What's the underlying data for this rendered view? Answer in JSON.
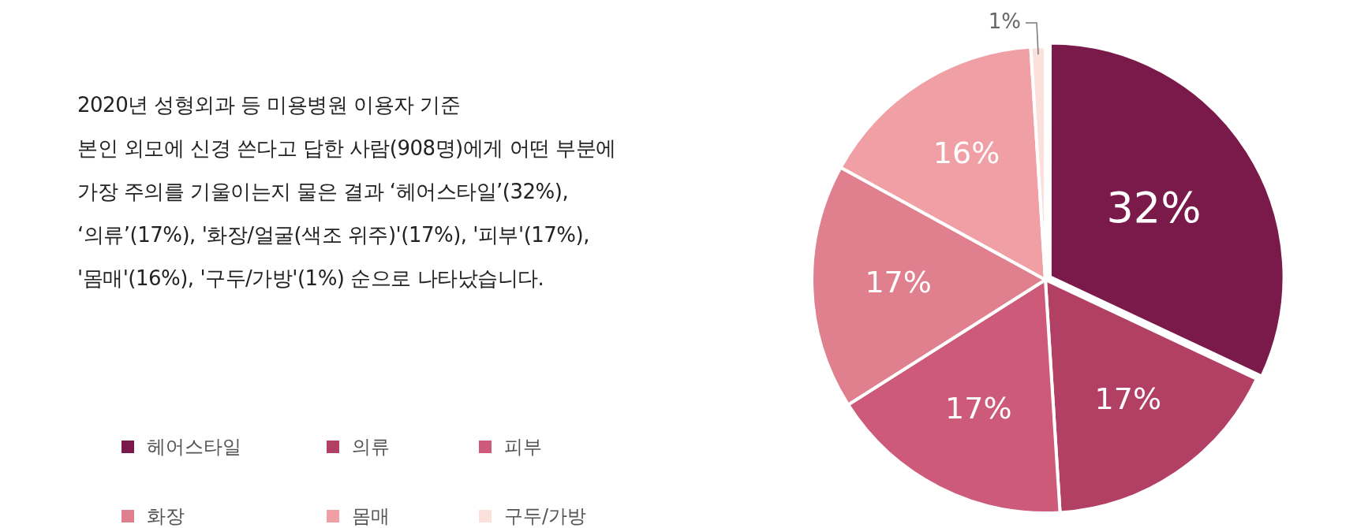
{
  "chart_data": {
    "type": "pie",
    "subtitle": "2020년 성형외과 등 미용병원 이용자 기준\n본인 외모에 신경 쓴다고 답한 사람(908명)에게 어떤 부분에\n가장 주의를 기울이는지 물은 결과 ‘헤어스타일’(32%),\n‘의류’(17%), '화장/얼굴(색조 위주)'(17%), '피부'(17%),\n'몸매'(16%), '구두/가방'(1%) 순으로 나타났습니다.",
    "categories": [
      "헤어스타일",
      "의류",
      "피부",
      "화장",
      "몸매",
      "구두/가방"
    ],
    "values": [
      32,
      17,
      17,
      17,
      16,
      1
    ],
    "colors": [
      "#7a1a4a",
      "#b24064",
      "#cc5a78",
      "#e0808e",
      "#f0a0a5",
      "#fbe0dc"
    ],
    "value_labels": [
      "32%",
      "17%",
      "17%",
      "17%",
      "16%",
      "1%"
    ],
    "legend": "left"
  }
}
